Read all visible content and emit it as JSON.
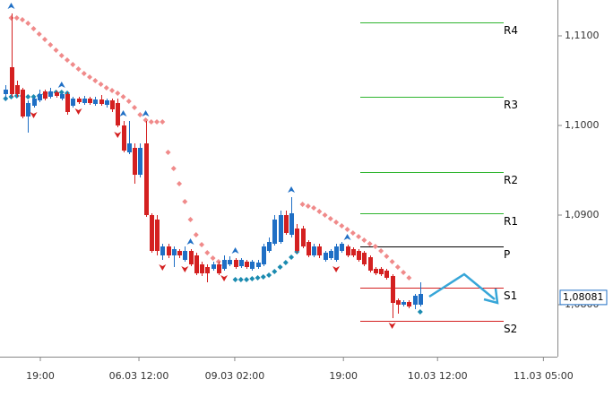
{
  "chart_data": {
    "type": "candlestick",
    "ylim": [
      1.0742,
      1.114
    ],
    "yticks": [
      {
        "value": 1.08,
        "label": "1,0800"
      },
      {
        "value": 1.09,
        "label": "1,0900"
      },
      {
        "value": 1.1,
        "label": "1,1000"
      },
      {
        "value": 1.11,
        "label": "1,1100"
      }
    ],
    "xlim": [
      -1,
      98.5
    ],
    "xticks": [
      {
        "value": 6.2,
        "label": "19:00"
      },
      {
        "value": 23.8,
        "label": "06.03 12:00"
      },
      {
        "value": 40.9,
        "label": "09.03 02:00"
      },
      {
        "value": 60.3,
        "label": "19:00"
      },
      {
        "value": 77.1,
        "label": "10.03 12:00"
      },
      {
        "value": 96,
        "label": "11.03 05:00"
      }
    ],
    "up_color": "#1f6fc5",
    "down_color": "#d42020",
    "ohlc": [
      [
        1.1035,
        1.1045,
        1.1028,
        1.104
      ],
      [
        1.1065,
        1.1125,
        1.1032,
        1.1035
      ],
      [
        1.1045,
        1.105,
        1.1032,
        1.1035
      ],
      [
        1.104,
        1.1042,
        1.1008,
        1.101
      ],
      [
        1.101,
        1.1028,
        1.0992,
        1.1025
      ],
      [
        1.1022,
        1.1032,
        1.102,
        1.103
      ],
      [
        1.1028,
        1.104,
        1.1026,
        1.1035
      ],
      [
        1.1038,
        1.104,
        1.1028,
        1.103
      ],
      [
        1.1032,
        1.1042,
        1.103,
        1.1038
      ],
      [
        1.1037,
        1.1039,
        1.1031,
        1.1033
      ],
      [
        1.103,
        1.1037,
        1.1028,
        1.1035
      ],
      [
        1.1035,
        1.1037,
        1.1012,
        1.1015
      ],
      [
        1.1022,
        1.1032,
        1.102,
        1.103
      ],
      [
        1.103,
        1.1032,
        1.1024,
        1.1026
      ],
      [
        1.1025,
        1.1033,
        1.1023,
        1.103
      ],
      [
        1.103,
        1.1032,
        1.1023,
        1.1025
      ],
      [
        1.1024,
        1.1032,
        1.1022,
        1.1029
      ],
      [
        1.1029,
        1.1034,
        1.1022,
        1.1024
      ],
      [
        1.1023,
        1.103,
        1.102,
        1.1028
      ],
      [
        1.1028,
        1.103,
        1.1015,
        1.1018
      ],
      [
        1.1025,
        1.103,
        1.0998,
        1.1
      ],
      [
        1.1,
        1.1005,
        1.097,
        1.0972
      ],
      [
        1.097,
        1.1005,
        1.0968,
        1.098
      ],
      [
        1.0975,
        1.098,
        1.0935,
        1.0945
      ],
      [
        1.0945,
        1.098,
        1.0942,
        1.0975
      ],
      [
        1.098,
        1.1005,
        1.0898,
        1.09
      ],
      [
        1.09,
        1.0902,
        1.0858,
        1.086
      ],
      [
        1.0895,
        1.09,
        1.0855,
        1.086
      ],
      [
        1.0855,
        1.0868,
        1.085,
        1.0865
      ],
      [
        1.0865,
        1.0868,
        1.0852,
        1.0855
      ],
      [
        1.0855,
        1.0865,
        1.0842,
        1.0862
      ],
      [
        1.086,
        1.0862,
        1.0852,
        1.0855
      ],
      [
        1.085,
        1.0865,
        1.0848,
        1.086
      ],
      [
        1.086,
        1.0862,
        1.0843,
        1.0845
      ],
      [
        1.0855,
        1.0858,
        1.0833,
        1.0835
      ],
      [
        1.0845,
        1.0848,
        1.0832,
        1.0835
      ],
      [
        1.0842,
        1.0845,
        1.0825,
        1.0835
      ],
      [
        1.084,
        1.0848,
        1.0838,
        1.0845
      ],
      [
        1.0845,
        1.0848,
        1.0833,
        1.0835
      ],
      [
        1.084,
        1.0855,
        1.0838,
        1.085
      ],
      [
        1.0845,
        1.0854,
        1.0843,
        1.085
      ],
      [
        1.085,
        1.0852,
        1.084,
        1.0842
      ],
      [
        1.0843,
        1.0852,
        1.0841,
        1.085
      ],
      [
        1.0848,
        1.085,
        1.084,
        1.0842
      ],
      [
        1.084,
        1.085,
        1.0838,
        1.0848
      ],
      [
        1.0842,
        1.085,
        1.084,
        1.0847
      ],
      [
        1.0845,
        1.0868,
        1.0843,
        1.0865
      ],
      [
        1.086,
        1.0875,
        1.0858,
        1.087
      ],
      [
        1.0868,
        1.09,
        1.0866,
        1.0895
      ],
      [
        1.087,
        1.0905,
        1.0868,
        1.09
      ],
      [
        1.09,
        1.0905,
        1.0878,
        1.088
      ],
      [
        1.0878,
        1.092,
        1.0875,
        1.0902
      ],
      [
        1.0885,
        1.089,
        1.0858,
        1.086
      ],
      [
        1.0885,
        1.0888,
        1.0863,
        1.0865
      ],
      [
        1.087,
        1.0872,
        1.0853,
        1.0855
      ],
      [
        1.0855,
        1.0868,
        1.0853,
        1.0865
      ],
      [
        1.0865,
        1.0868,
        1.0852,
        1.0855
      ],
      [
        1.085,
        1.086,
        1.0848,
        1.0858
      ],
      [
        1.0852,
        1.0862,
        1.085,
        1.086
      ],
      [
        1.085,
        1.0868,
        1.0848,
        1.0865
      ],
      [
        1.086,
        1.087,
        1.0858,
        1.0868
      ],
      [
        1.0865,
        1.0867,
        1.0853,
        1.0855
      ],
      [
        1.0862,
        1.0864,
        1.0853,
        1.0855
      ],
      [
        1.086,
        1.0862,
        1.0848,
        1.085
      ],
      [
        1.0858,
        1.086,
        1.0843,
        1.0845
      ],
      [
        1.0853,
        1.0855,
        1.0836,
        1.0838
      ],
      [
        1.084,
        1.0842,
        1.0833,
        1.0835
      ],
      [
        1.084,
        1.0842,
        1.0832,
        1.0834
      ],
      [
        1.0838,
        1.084,
        1.0828,
        1.083
      ],
      [
        1.0832,
        1.0834,
        1.0785,
        1.0802
      ],
      [
        1.0805,
        1.0807,
        1.079,
        1.08
      ],
      [
        1.08,
        1.0805,
        1.0798,
        1.0803
      ],
      [
        1.0803,
        1.0805,
        1.0796,
        1.0798
      ],
      [
        1.08,
        1.0812,
        1.0795,
        1.081
      ],
      [
        1.08,
        1.0825,
        1.0798,
        1.0812
      ]
    ],
    "series": [
      {
        "color": "#f08a8a",
        "values": [
          null,
          1.112,
          1.112,
          1.1118,
          1.1114,
          1.1108,
          1.1102,
          1.1096,
          1.109,
          1.1084,
          1.1078,
          1.1073,
          1.1068,
          1.1063,
          1.1058,
          1.1054,
          1.105,
          1.1046,
          1.1042,
          1.1039,
          1.1036,
          1.1032,
          1.1027,
          1.102,
          1.1012,
          1.1006,
          1.1004,
          1.1004,
          1.1004,
          1.097,
          1.0952,
          1.0935,
          1.0915,
          1.0895,
          1.0878,
          1.0867,
          1.0858,
          1.0852,
          1.0848,
          1.0844,
          null,
          null,
          null,
          null,
          null,
          null,
          null,
          null,
          null,
          null,
          null,
          null,
          null,
          1.0912,
          1.091,
          1.0908,
          1.0904,
          1.09,
          1.0896,
          1.0892,
          1.0888,
          1.0884,
          1.088,
          1.0876,
          1.0872,
          1.0868,
          1.0865,
          1.086,
          1.0854,
          1.0848,
          1.0842,
          1.0836,
          1.083,
          null,
          null
        ]
      },
      {
        "color": "#1b8bb0",
        "values": [
          1.103,
          1.1032,
          1.1033,
          1.1033,
          1.1032,
          1.1032,
          1.1033,
          1.1035,
          1.1036,
          1.1037,
          1.1037,
          1.1036,
          null,
          null,
          null,
          null,
          null,
          null,
          null,
          null,
          null,
          null,
          null,
          null,
          null,
          null,
          null,
          null,
          null,
          null,
          null,
          null,
          null,
          null,
          null,
          null,
          null,
          null,
          null,
          null,
          null,
          1.0828,
          1.0828,
          1.0828,
          1.0829,
          1.083,
          1.0831,
          1.0833,
          1.0837,
          1.0842,
          1.0847,
          1.0853,
          1.0859,
          null,
          null,
          null,
          null,
          null,
          null,
          null,
          null,
          null,
          null,
          null,
          null,
          null,
          null,
          null,
          null,
          null,
          null,
          null,
          null,
          null,
          1.0792
        ]
      }
    ],
    "fractal_up": [
      1,
      10,
      21,
      25,
      33,
      41,
      51,
      61
    ],
    "fractal_down": [
      5,
      13,
      20,
      28,
      32,
      39,
      59,
      69
    ],
    "levels": [
      {
        "label": "R4",
        "value": 1.1115,
        "color": "#2fb52f"
      },
      {
        "label": "R3",
        "value": 1.1032,
        "color": "#2fb52f"
      },
      {
        "label": "R2",
        "value": 1.0948,
        "color": "#2fb52f"
      },
      {
        "label": "R1",
        "value": 1.0902,
        "color": "#2fb52f"
      },
      {
        "label": "P",
        "value": 1.0865,
        "color": "#000000"
      },
      {
        "label": "S1",
        "value": 1.0819,
        "color": "#d42020"
      },
      {
        "label": "S2",
        "value": 1.0782,
        "color": "#d42020"
      }
    ],
    "current_price": {
      "value": 1.08081,
      "label": "1,08081"
    }
  }
}
